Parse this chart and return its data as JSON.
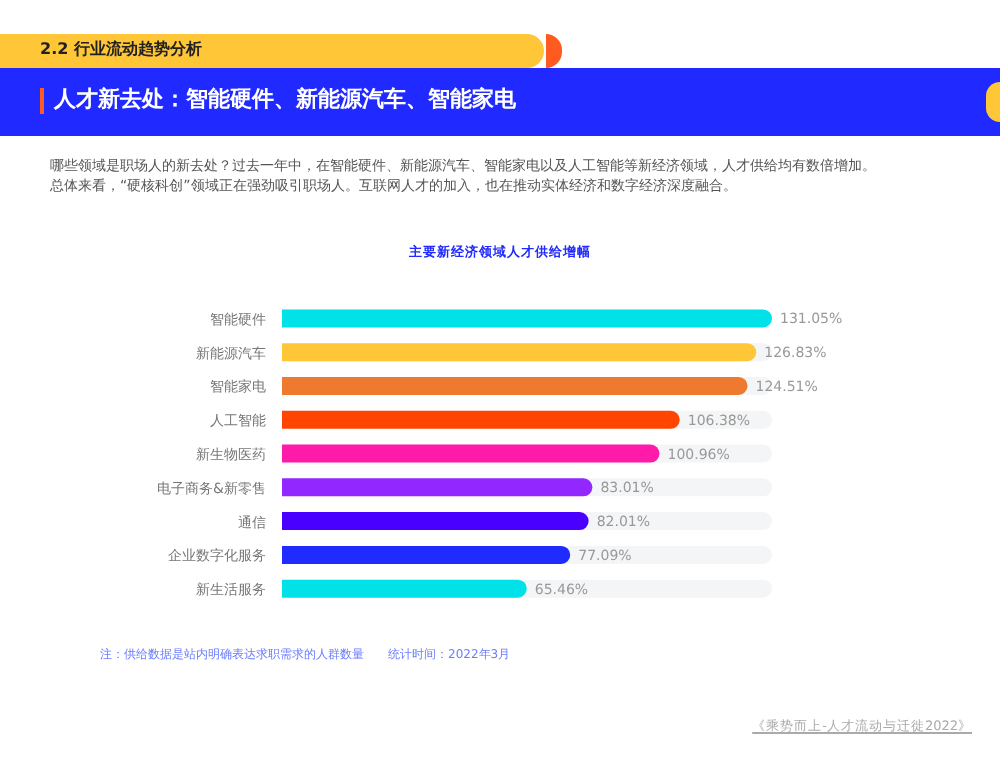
{
  "chart_data": {
    "type": "bar",
    "orientation": "horizontal",
    "title": "主要新经济领域人才供给增幅",
    "annotations": [
      "2.2  行业流动趋势分析",
      "人才新去处：智能硬件、新能源汽车、智能家电",
      "哪些领域是职场人的新去处？过去一年中，在智能硬件、新能源汽车、智能家电以及人工智能等新经济领域，人才供给均有数倍增加。",
      "总体来看，“硬核科创”领域正在强劲吸引职场人。互联网人才的加入，也在推动实体经济和数字经济深度融合。",
      "注：供给数据是站内明确表达求职需求的人群数量　　统计时间：2022年3月",
      "《乘势而上-人才流动与迁徙2022》"
    ],
    "categories": [
      "智能硬件",
      "新能源汽车",
      "智能家电",
      "人工智能",
      "新生物医药",
      "电子商务&新零售",
      "通信",
      "企业数字化服务",
      "新生活服务"
    ],
    "values": [
      131.05,
      126.83,
      124.51,
      106.38,
      100.96,
      83.01,
      82.01,
      77.09,
      65.46
    ],
    "value_labels": [
      "131.05%",
      "126.83%",
      "124.51%",
      "106.38%",
      "100.96%",
      "83.01%",
      "82.01%",
      "77.09%",
      "65.46%"
    ],
    "colors": [
      "#00e2e8",
      "#ffc637",
      "#ed7a2f",
      "#ff4500",
      "#ff1aaa",
      "#9227ff",
      "#4a00ff",
      "#1f2bff",
      "#00e2e8"
    ],
    "grid": false,
    "legend": false
  }
}
